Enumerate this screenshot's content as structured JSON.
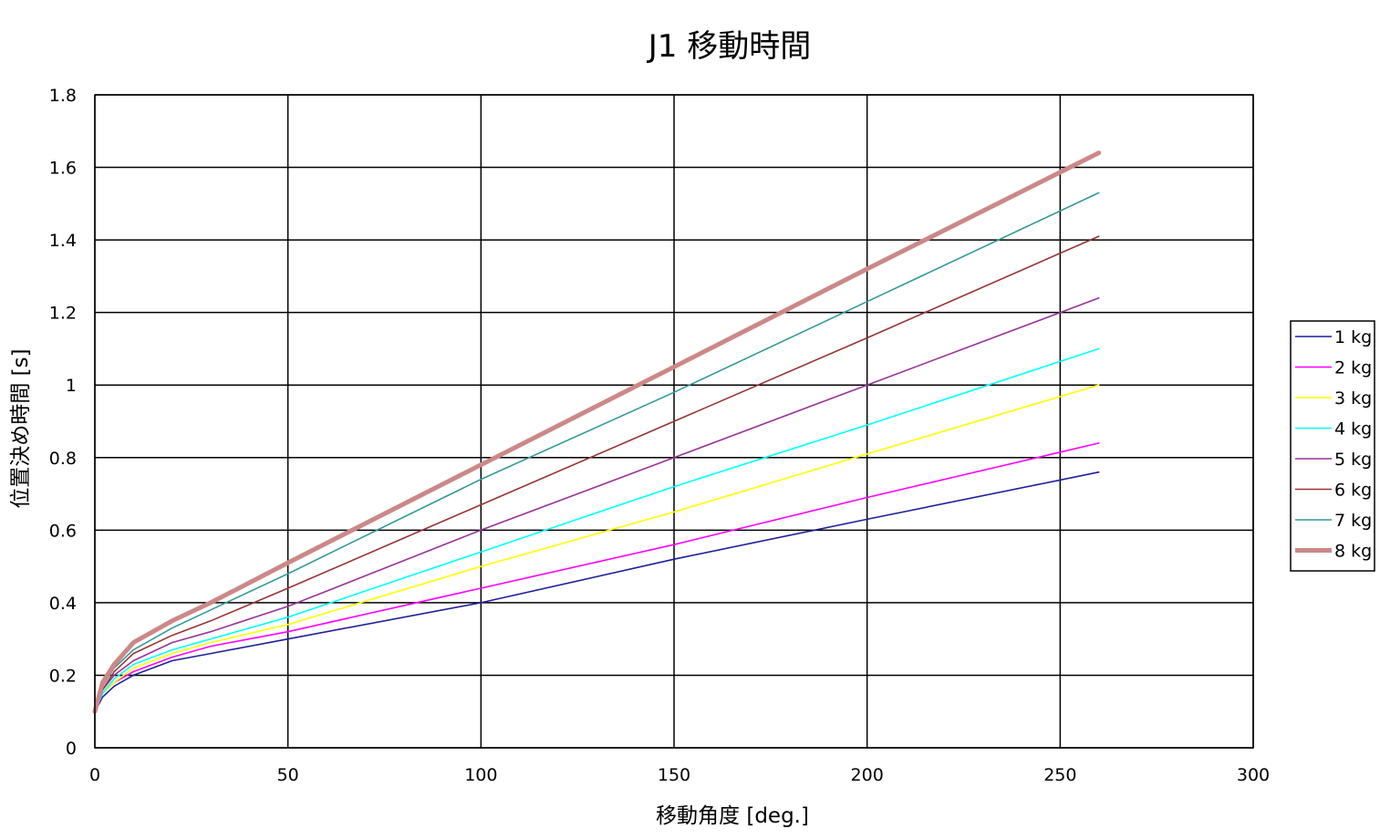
{
  "chart_data": {
    "type": "line",
    "title": "J1 移動時間",
    "xlabel": "移動角度 [deg.]",
    "ylabel": "位置決め時間 [s]",
    "xlim": [
      0,
      300
    ],
    "ylim": [
      0,
      1.8
    ],
    "x_ticks": [
      "0",
      "50",
      "100",
      "150",
      "200",
      "250",
      "300"
    ],
    "y_ticks": [
      "0",
      "0.2",
      "0.4",
      "0.6",
      "0.8",
      "1",
      "1.2",
      "1.4",
      "1.6",
      "1.8"
    ],
    "grid": true,
    "legend_position": "right",
    "x": [
      0,
      2,
      5,
      10,
      20,
      30,
      50,
      100,
      150,
      200,
      260
    ],
    "series": [
      {
        "name": "1 kg",
        "color": "#1f1f99",
        "values": [
          0.1,
          0.14,
          0.17,
          0.2,
          0.24,
          0.26,
          0.3,
          0.4,
          0.52,
          0.63,
          0.76
        ]
      },
      {
        "name": "2 kg",
        "color": "#ff00ff",
        "values": [
          0.1,
          0.15,
          0.18,
          0.21,
          0.25,
          0.28,
          0.32,
          0.44,
          0.56,
          0.69,
          0.84
        ]
      },
      {
        "name": "3 kg",
        "color": "#ffff00",
        "values": [
          0.1,
          0.15,
          0.18,
          0.22,
          0.26,
          0.29,
          0.34,
          0.5,
          0.65,
          0.81,
          1.0
        ]
      },
      {
        "name": "4 kg",
        "color": "#00ffff",
        "values": [
          0.1,
          0.15,
          0.19,
          0.23,
          0.27,
          0.3,
          0.36,
          0.54,
          0.72,
          0.89,
          1.1
        ]
      },
      {
        "name": "5 kg",
        "color": "#993399",
        "values": [
          0.1,
          0.16,
          0.2,
          0.24,
          0.29,
          0.32,
          0.39,
          0.6,
          0.8,
          1.0,
          1.24
        ]
      },
      {
        "name": "6 kg",
        "color": "#993333",
        "values": [
          0.1,
          0.16,
          0.21,
          0.26,
          0.31,
          0.35,
          0.44,
          0.67,
          0.9,
          1.13,
          1.41
        ]
      },
      {
        "name": "7 kg",
        "color": "#339999",
        "values": [
          0.1,
          0.17,
          0.22,
          0.27,
          0.33,
          0.38,
          0.48,
          0.74,
          0.98,
          1.23,
          1.53
        ]
      },
      {
        "name": "8 kg",
        "color": "#cc8888",
        "values": [
          0.1,
          0.18,
          0.23,
          0.29,
          0.35,
          0.4,
          0.51,
          0.78,
          1.05,
          1.32,
          1.64
        ]
      }
    ]
  }
}
